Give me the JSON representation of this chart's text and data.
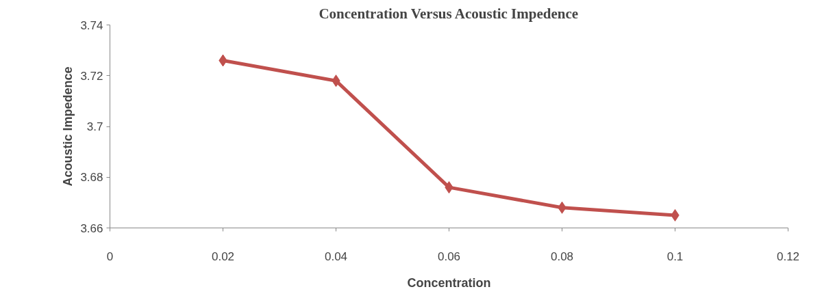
{
  "chart_data": {
    "type": "line",
    "title": "Concentration Versus Acoustic Impedence",
    "xlabel": "Concentration",
    "ylabel": "Acoustic Impedence",
    "x": [
      0.02,
      0.04,
      0.06,
      0.08,
      0.1
    ],
    "series": [
      {
        "color": "#c0504d",
        "values": [
          3.726,
          3.718,
          3.676,
          3.668,
          3.665
        ]
      }
    ],
    "xlim": [
      0,
      0.12
    ],
    "xticks": [
      0,
      0.02,
      0.04,
      0.06,
      0.08,
      0.1,
      0.12
    ],
    "ylim": [
      3.66,
      3.74
    ],
    "yticks": [
      3.66,
      3.68,
      3.7,
      3.72,
      3.74
    ],
    "marker": "diamond",
    "line_style": "solid",
    "grid": false
  }
}
